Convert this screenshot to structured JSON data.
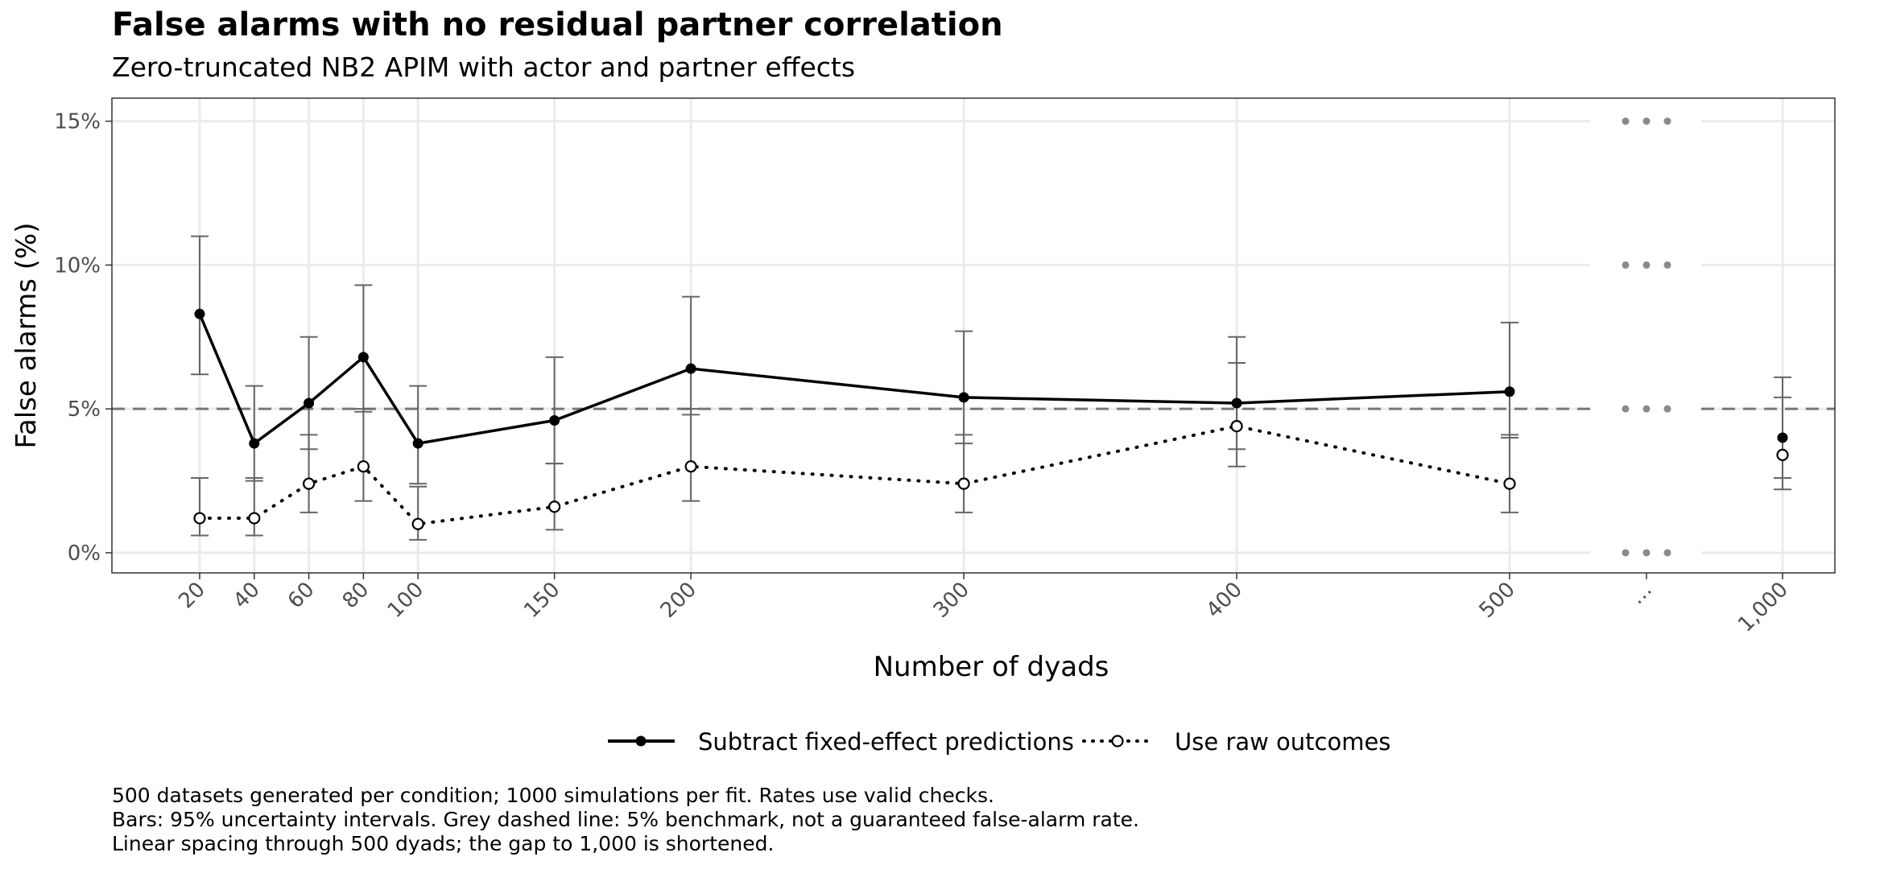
{
  "title": "False alarms with no residual partner correlation",
  "subtitle": "Zero-truncated NB2 APIM with actor and partner effects",
  "caption": [
    "500 datasets generated per condition; 1000 simulations per fit. Rates use valid checks.",
    "Bars: 95% uncertainty intervals. Grey dashed line: 5% benchmark, not a guaranteed false-alarm rate.",
    "Linear spacing through 500 dyads; the gap to 1,000 is shortened."
  ],
  "chart_data": {
    "type": "line",
    "xlabel": "Number of dyads",
    "ylabel": "False alarms (%)",
    "ylim": [
      -0.7,
      15.8
    ],
    "y_ticks": [
      0,
      5,
      10,
      15
    ],
    "y_tick_labels": [
      "0%",
      "5%",
      "10%",
      "15%"
    ],
    "x_ticks": [
      20,
      40,
      60,
      80,
      100,
      150,
      200,
      300,
      400,
      500,
      "…",
      1000
    ],
    "x_tick_labels": [
      "20",
      "40",
      "60",
      "80",
      "100",
      "150",
      "200",
      "300",
      "400",
      "500",
      "…",
      "1,000"
    ],
    "axis_break": "between 500 and 1,000",
    "grid": true,
    "legend_position": "bottom",
    "benchmark_line": {
      "y": 5,
      "style": "dashed",
      "color": "#777777"
    },
    "series": [
      {
        "name": "Subtract fixed-effect predictions",
        "line_style": "solid",
        "marker": "filled-circle",
        "color": "#000000",
        "x": [
          20,
          40,
          60,
          80,
          100,
          150,
          200,
          300,
          400,
          500,
          1000
        ],
        "y": [
          8.3,
          3.8,
          5.2,
          6.8,
          3.8,
          4.6,
          6.4,
          5.4,
          5.2,
          5.6,
          4.0
        ],
        "lower": [
          6.2,
          2.5,
          3.6,
          4.9,
          2.4,
          3.1,
          4.8,
          3.8,
          3.6,
          4.0,
          2.6
        ],
        "upper": [
          11.0,
          5.8,
          7.5,
          9.3,
          5.8,
          6.8,
          8.9,
          7.7,
          7.5,
          8.0,
          6.1
        ]
      },
      {
        "name": "Use raw outcomes",
        "line_style": "dotted",
        "marker": "open-circle",
        "color": "#000000",
        "x": [
          20,
          40,
          60,
          80,
          100,
          150,
          200,
          300,
          400,
          500,
          1000
        ],
        "y": [
          1.2,
          1.2,
          2.4,
          3.0,
          1.0,
          1.6,
          3.0,
          2.4,
          4.4,
          2.4,
          3.4
        ],
        "lower": [
          0.6,
          0.6,
          1.4,
          1.8,
          0.45,
          0.8,
          1.8,
          1.4,
          3.0,
          1.4,
          2.2
        ],
        "upper": [
          2.6,
          2.6,
          4.1,
          5.0,
          2.3,
          3.1,
          5.0,
          4.1,
          6.6,
          4.1,
          5.4
        ]
      }
    ]
  }
}
